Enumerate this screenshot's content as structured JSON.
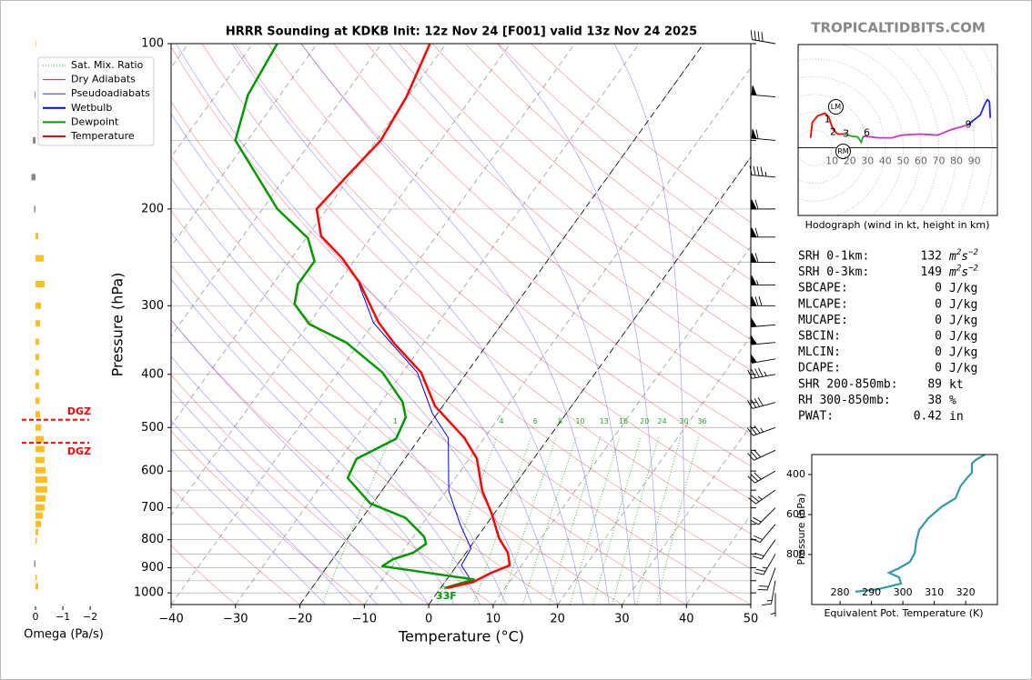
{
  "site": "TROPICALTIDBITS.COM",
  "chart_data": [
    {
      "type": "skewt",
      "title": "HRRR Sounding at KDKB Init: 12z Nov 24 [F001] valid 13z Nov 24 2025",
      "xlabel": "Temperature (°C)",
      "ylabel": "Pressure (hPa)",
      "xlim": [
        -40,
        50
      ],
      "ylim": [
        1050,
        100
      ],
      "log_y": true,
      "xticks": [
        {
          "value": -40,
          "label": "−40"
        },
        {
          "value": -30,
          "label": "−30"
        },
        {
          "value": -20,
          "label": "−20"
        },
        {
          "value": -10,
          "label": "−10"
        },
        0,
        10,
        20,
        30,
        40,
        50
      ],
      "yticks": [
        100,
        200,
        300,
        400,
        500,
        600,
        700,
        800,
        900,
        1000
      ],
      "grid": true,
      "legend": "upper left",
      "highlight_isotherms": [
        -20,
        0
      ],
      "reference_lines": [
        {
          "name": "Sat. Mix. Ratio",
          "color": "#2ca02c",
          "linestyle": "dotted",
          "values": [
            1,
            4,
            6,
            8,
            10,
            13,
            16,
            20,
            24,
            30,
            36
          ]
        },
        {
          "name": "Dry Adiabats",
          "color": "#d62728",
          "linestyle": "solid"
        },
        {
          "name": "Pseudoadiabats",
          "color": "#3030e0",
          "linestyle": "solid"
        }
      ],
      "series": [
        {
          "name": "Wetbulb",
          "color": "#0000ff",
          "pressure": [
            980,
            955,
            891,
            830,
            750,
            652,
            522,
            471,
            397,
            347,
            322,
            273
          ],
          "values": [
            0.8,
            4.2,
            0.7,
            0.3,
            -4.1,
            -9.6,
            -15.6,
            -20.8,
            -27.7,
            -35.7,
            -40.1,
            -46.8
          ]
        },
        {
          "name": "Dewpoint",
          "color": "#009900",
          "pressure": [
            980,
            945,
            894,
            868,
            845,
            814,
            790,
            730,
            687,
            618,
            570,
            524,
            479,
            449,
            397,
            350,
            324,
            298,
            274,
            249,
            226,
            200,
            150,
            124,
            100
          ],
          "values": [
            0.6,
            4.2,
            -11.5,
            -10.6,
            -8.2,
            -7.2,
            -8.3,
            -13.3,
            -20.4,
            -26.7,
            -27.5,
            -23.6,
            -24.5,
            -26.7,
            -33.1,
            -42.1,
            -49.9,
            -54.4,
            -56.1,
            -56.1,
            -59.7,
            -67.7,
            -81.9,
            -85.0,
            -86.2
          ]
        },
        {
          "name": "Temperature",
          "color": "#ff0000",
          "pressure": [
            980,
            955,
            919,
            891,
            845,
            795,
            717,
            652,
            570,
            522,
            457,
            397,
            351,
            322,
            273,
            246,
            224,
            200,
            175,
            150,
            125,
            100
          ],
          "values": [
            1.0,
            4.4,
            6.2,
            8.2,
            6.5,
            3.5,
            -0.4,
            -4.4,
            -8.8,
            -13.1,
            -21.2,
            -27.1,
            -34.6,
            -39.3,
            -46.6,
            -52.1,
            -57.9,
            -61.6,
            -60.6,
            -59.3,
            -60.2,
            -62.5
          ]
        }
      ],
      "surface_label": "33F",
      "wind": {
        "pressure": [
          100,
          125,
          150,
          175,
          200,
          225,
          250,
          275,
          300,
          325,
          350,
          375,
          400,
          450,
          500,
          550,
          600,
          650,
          700,
          750,
          800,
          850,
          900,
          950,
          1000
        ],
        "speed": [
          40,
          50,
          60,
          45,
          60,
          60,
          60,
          55,
          70,
          50,
          50,
          50,
          45,
          40,
          35,
          30,
          30,
          25,
          20,
          20,
          20,
          25,
          20,
          15,
          5
        ],
        "direction": [
          280,
          275,
          275,
          275,
          270,
          270,
          270,
          270,
          270,
          265,
          265,
          260,
          260,
          255,
          250,
          245,
          240,
          235,
          225,
          220,
          215,
          210,
          200,
          190,
          180
        ]
      }
    },
    {
      "type": "hodograph",
      "caption": "Hodograph (wind in kt, height in km)",
      "xlim": [
        -9,
        103
      ],
      "ylim": [
        -38,
        58
      ],
      "xticks": [
        10,
        20,
        30,
        40,
        50,
        60,
        70,
        80,
        90
      ],
      "segments": [
        {
          "color": "#ff0000",
          "u": [
            -2.0,
            -1.0,
            2.0,
            6.1,
            8.2,
            10.7,
            13.3,
            17.3
          ],
          "v": [
            5.6,
            14.3,
            17.9,
            19.4,
            17.3,
            10.2,
            7.7,
            7.7
          ]
        },
        {
          "color": "#22aa22",
          "u": [
            17.3,
            20.9,
            24.5,
            26.5,
            27.6
          ],
          "v": [
            7.7,
            6.6,
            6.1,
            3.1,
            6.6
          ]
        },
        {
          "color": "#cc33cc",
          "u": [
            27.6,
            36.2,
            43.9,
            49.0,
            59.2,
            69.4,
            77.0,
            86.2
          ],
          "v": [
            6.6,
            5.6,
            5.6,
            7.1,
            7.7,
            7.1,
            10.2,
            12.8
          ]
        },
        {
          "color": "#2222ff",
          "u": [
            86.2,
            93.4,
            95.9,
            97.4,
            98.5,
            99.0
          ],
          "v": [
            12.8,
            18.4,
            24.5,
            27.0,
            26.0,
            16.8
          ]
        }
      ],
      "height_labels": {
        "labels": [
          1,
          2,
          3,
          6,
          9
        ],
        "u": [
          7.4,
          10.7,
          17.9,
          29.6,
          86.7
        ],
        "v": [
          15.8,
          8.7,
          7.7,
          8.2,
          12.8
        ]
      },
      "storm_motion": [
        {
          "label": "LM",
          "u": 12.2,
          "v": 23.0
        },
        {
          "label": "RM",
          "u": 16.3,
          "v": -2.0
        }
      ]
    },
    {
      "type": "bar",
      "xlabel": "Omega (Pa/s)",
      "xlim": [
        0.5,
        -2.23
      ],
      "ylim": [
        1050,
        100
      ],
      "log_y": true,
      "xticks": [
        0,
        {
          "value": -1,
          "label": "−1"
        },
        {
          "value": -2,
          "label": "−2"
        }
      ],
      "colors": {
        "negative": "#fbbf24",
        "positive": "#888888"
      },
      "pressure": [
        100,
        124,
        150,
        175,
        200,
        224,
        246,
        274,
        300,
        323,
        349,
        372,
        397,
        420,
        447,
        473,
        500,
        525,
        547,
        573,
        598,
        622,
        648,
        673,
        699,
        723,
        749,
        775,
        804,
        885,
        937,
        973
      ],
      "values": [
        -0.02,
        0.03,
        0.1,
        0.15,
        0.05,
        -0.1,
        -0.3,
        -0.33,
        -0.2,
        -0.17,
        -0.13,
        -0.13,
        -0.13,
        -0.13,
        -0.15,
        -0.17,
        -0.2,
        -0.3,
        -0.33,
        -0.33,
        -0.37,
        -0.43,
        -0.43,
        -0.37,
        -0.33,
        -0.27,
        -0.2,
        -0.1,
        -0.05,
        0.05,
        -0.05,
        -0.1
      ],
      "dgz": {
        "labels": [
          "DGZ",
          "DGZ"
        ],
        "pressures": [
          484,
          533
        ],
        "color": "#ff0000"
      }
    },
    {
      "type": "line",
      "xlabel": "Equivalent Pot. Temperature (K)",
      "ylabel": "Pressure (hPa)",
      "xlim": [
        271,
        330.1
      ],
      "ylim": [
        1050,
        300
      ],
      "xticks": [
        280,
        290,
        300,
        310,
        320
      ],
      "yticks": [
        400,
        600,
        800
      ],
      "series": [
        {
          "color": "#3399aa",
          "x": [
            284.9,
            292.2,
            299.4,
            298.8,
            295.6,
            298.8,
            302.3,
            303.8,
            304.3,
            305.2,
            308.1,
            312.5,
            316.8,
            318.3,
            320.6,
            322.0,
            322.0,
            323.2,
            326.1
          ],
          "y": [
            986,
            973,
            945,
            914,
            891,
            868,
            836,
            791,
            732,
            677,
            618,
            559,
            518,
            459,
            414,
            391,
            345,
            327,
            300
          ]
        }
      ]
    }
  ],
  "stats": [
    {
      "label": "SRH 0-1km:",
      "value": 132,
      "unit": [
        "m",
        "2",
        "s",
        "−2"
      ],
      "color": "#a020a0"
    },
    {
      "label": "SRH 0-3km:",
      "value": 149,
      "unit": [
        "m",
        "2",
        "s",
        "−2"
      ],
      "color": "#000000"
    },
    {
      "label": "SBCAPE:",
      "value": 0,
      "unit": [
        "J/kg"
      ],
      "color": "#000000"
    },
    {
      "label": "MLCAPE:",
      "value": 0,
      "unit": [
        "J/kg"
      ],
      "color": "#000000"
    },
    {
      "label": "MUCAPE:",
      "value": 0,
      "unit": [
        "J/kg"
      ],
      "color": "#000000"
    },
    {
      "label": "SBCIN:",
      "value": 0,
      "unit": [
        "J/kg"
      ],
      "color": "#000000"
    },
    {
      "label": "MLCIN:",
      "value": 0,
      "unit": [
        "J/kg"
      ],
      "color": "#000000"
    },
    {
      "label": "DCAPE:",
      "value": 0,
      "unit": [
        "J/kg"
      ],
      "color": "#000000"
    },
    {
      "label": "SHR 200-850mb:",
      "value": 89,
      "unit": [
        "kt"
      ],
      "color": "#b22222"
    },
    {
      "label": "RH 300-850mb:",
      "value": 38,
      "unit": [
        "%"
      ],
      "color": "#8b5a00"
    },
    {
      "label": "PWAT:",
      "value": 0.42,
      "unit": [
        "in"
      ],
      "color": "#000000"
    }
  ]
}
